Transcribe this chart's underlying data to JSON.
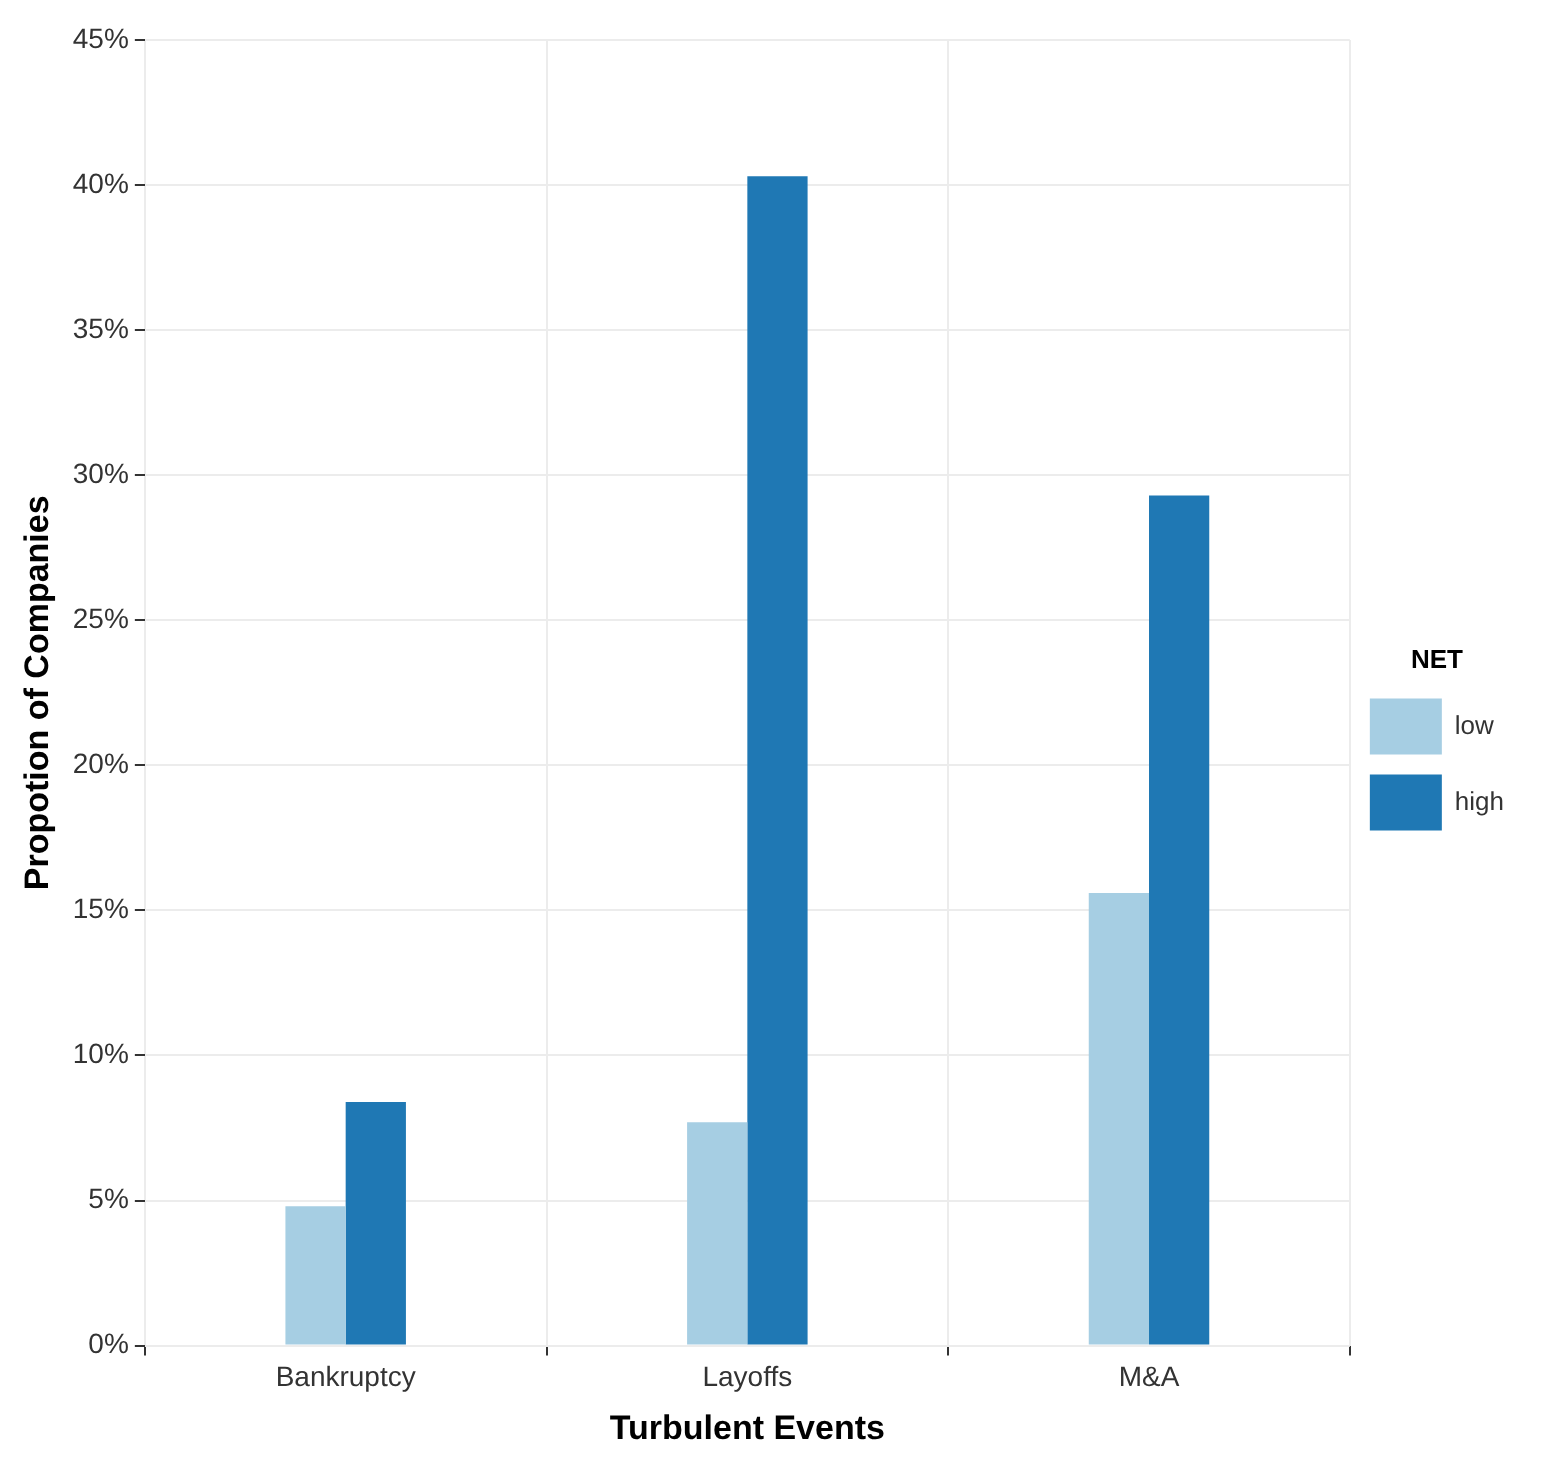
{
  "chart_data": {
    "type": "bar",
    "xlabel": "Turbulent Events",
    "ylabel": "Propotion of Companies",
    "legend_title": "NET",
    "categories": [
      "Bankruptcy",
      "Layoffs",
      "M&A"
    ],
    "series": [
      {
        "name": "low",
        "color": "#a6cee3",
        "values": [
          4.8,
          7.7,
          15.6
        ]
      },
      {
        "name": "high",
        "color": "#1f78b4",
        "values": [
          8.4,
          40.3,
          29.3
        ]
      }
    ],
    "ylim": [
      0,
      45
    ],
    "yticks": [
      {
        "value": 0,
        "label": "0%"
      },
      {
        "value": 5,
        "label": "5%"
      },
      {
        "value": 10,
        "label": "10%"
      },
      {
        "value": 15,
        "label": "15%"
      },
      {
        "value": 20,
        "label": "20%"
      },
      {
        "value": 25,
        "label": "25%"
      },
      {
        "value": 30,
        "label": "30%"
      },
      {
        "value": 35,
        "label": "35%"
      },
      {
        "value": 40,
        "label": "40%"
      },
      {
        "value": 45,
        "label": "45%"
      }
    ],
    "grid": true,
    "legend": "right"
  }
}
